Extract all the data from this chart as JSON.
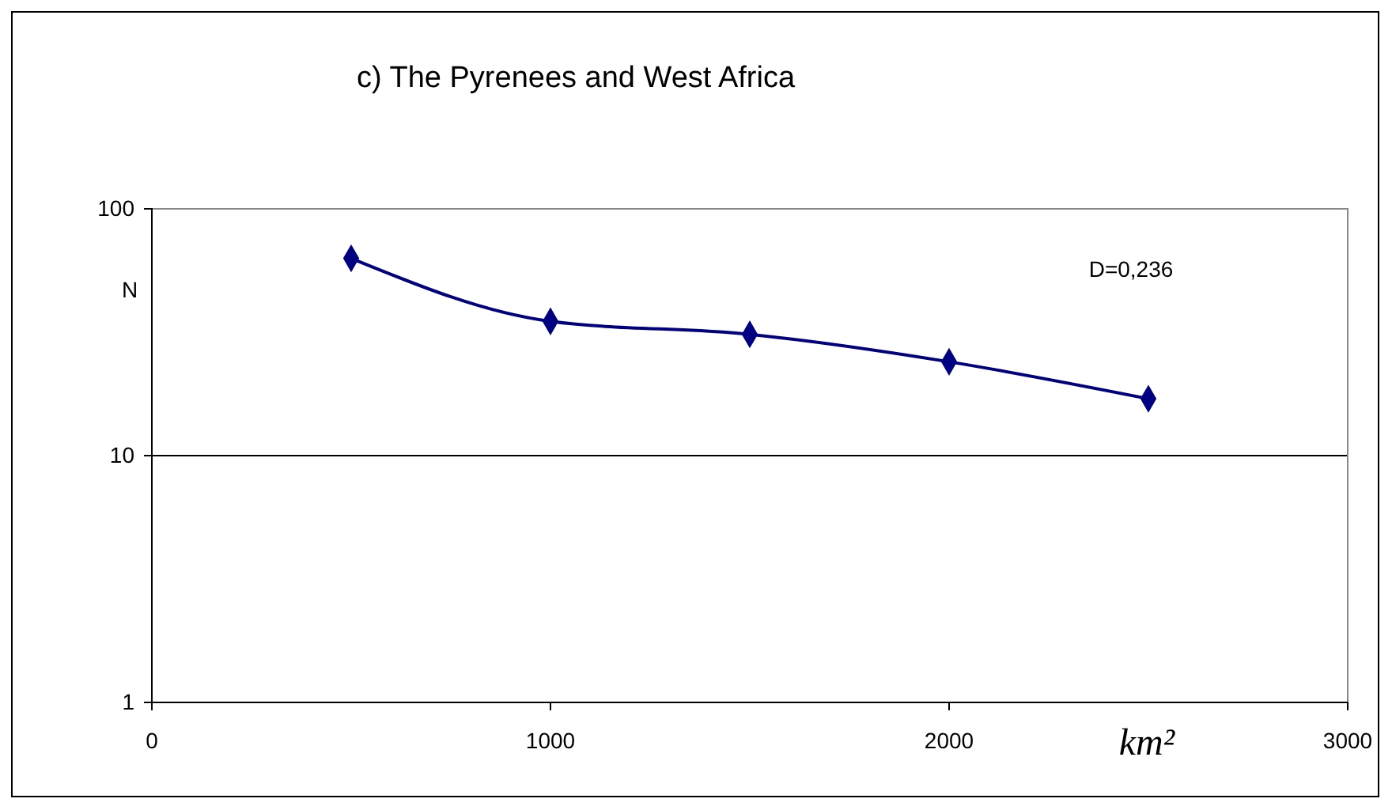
{
  "chart_data": {
    "type": "line",
    "title": "c) The Pyrenees and West Africa",
    "xlabel": "km²",
    "ylabel": "N",
    "annotations": [
      "D=0,236"
    ],
    "x": [
      500,
      1000,
      1500,
      2000,
      2500
    ],
    "series": [
      {
        "color": "#000080",
        "values": [
          63,
          35,
          31,
          24,
          17
        ]
      }
    ],
    "xlim": [
      0,
      3000
    ],
    "xticks": [
      0,
      1000,
      2000,
      3000
    ],
    "ylim": [
      1,
      100
    ],
    "yticks": [
      1,
      10,
      100
    ],
    "log": "y",
    "grid": "y",
    "marker": "diamond",
    "line_style": "solid"
  }
}
